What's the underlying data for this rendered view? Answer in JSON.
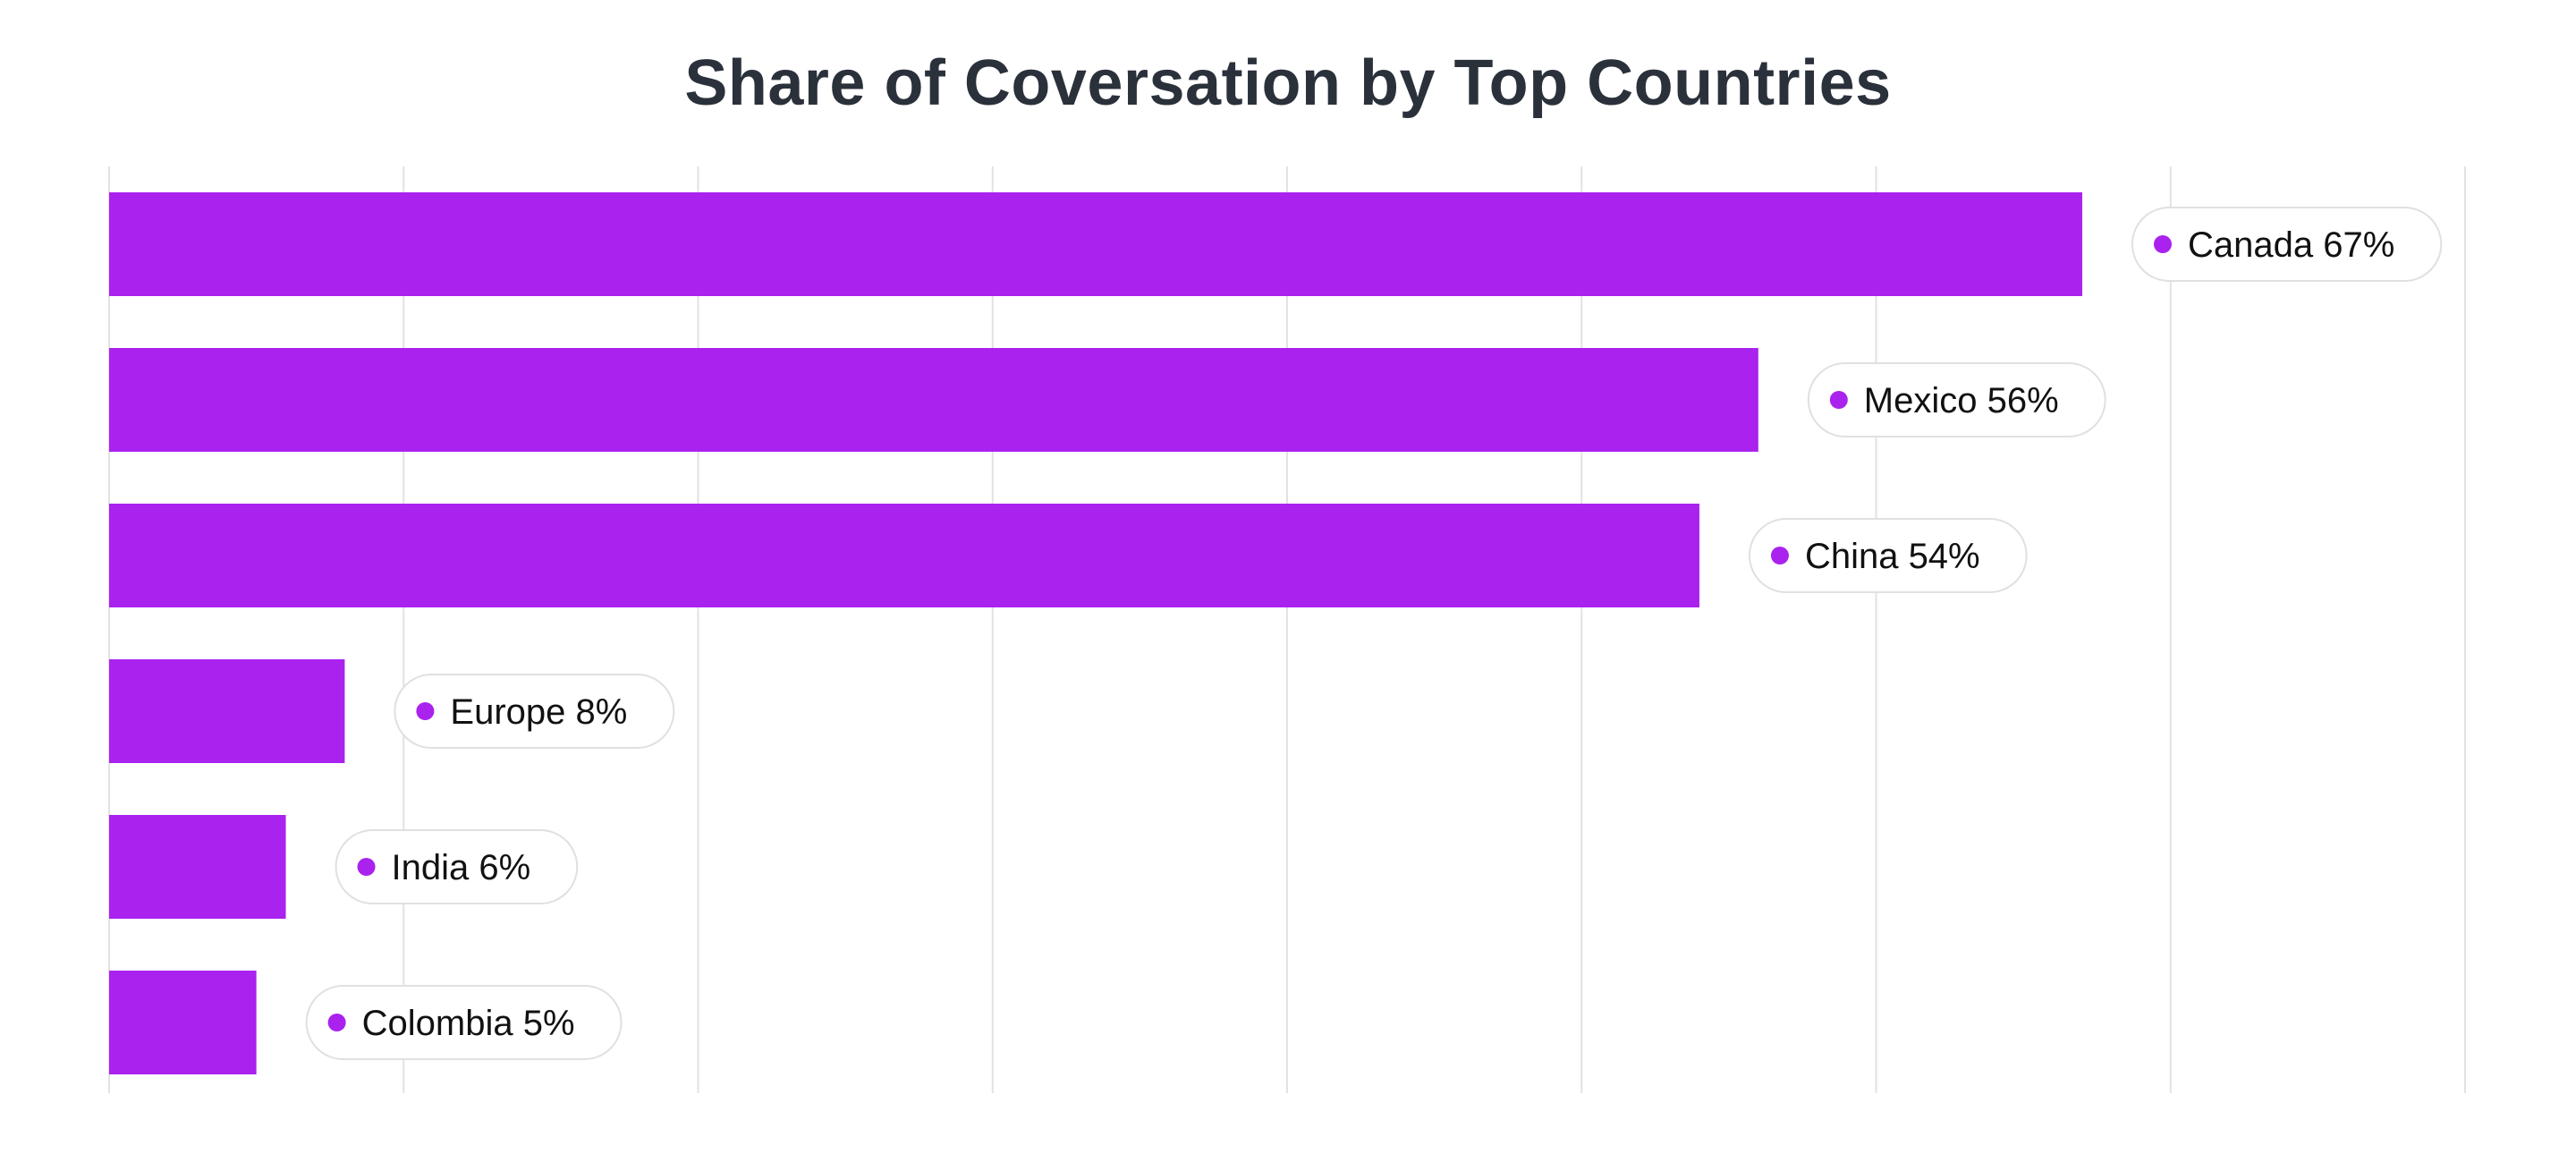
{
  "chart_data": {
    "type": "bar",
    "orientation": "horizontal",
    "title": "Share of Coversation by Top Countries",
    "categories": [
      "Canada",
      "Mexico",
      "China",
      "Europe",
      "India",
      "Colombia"
    ],
    "values": [
      67,
      56,
      54,
      8,
      6,
      5
    ],
    "unit": "%",
    "labels": [
      "Canada 67%",
      "Mexico 56%",
      "China 54%",
      "Europe 8%",
      "India 6%",
      "Colombia 5%"
    ],
    "xlim": [
      0,
      80
    ],
    "grid": true,
    "legend": "none",
    "colors": {
      "bar": "#aa22ee",
      "marker": "#aa22ee",
      "grid": "#e2e2e2",
      "title": "#2b313b",
      "pill_border": "#e0e0e0"
    }
  }
}
